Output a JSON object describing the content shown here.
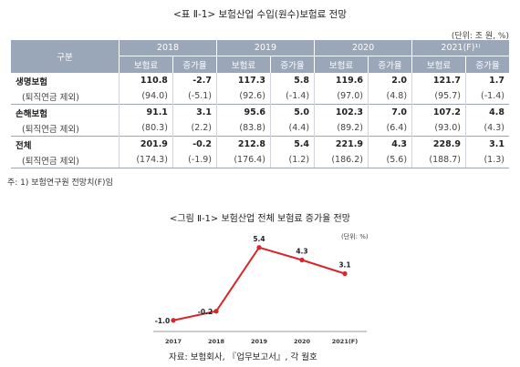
{
  "table": {
    "title": "<표 Ⅱ-1> 보험산업 수입(원수)보험료 전망",
    "unit": "(단위: 조 원, %)",
    "gubun_label": "구분",
    "years": [
      "2018",
      "2019",
      "2020",
      "2021(F)¹⁾"
    ],
    "sub_headers": [
      "보험료",
      "증가율",
      "보험료",
      "증가율",
      "보험료",
      "증가율",
      "보험료",
      "증가율"
    ],
    "rows": [
      {
        "label": "생명보험",
        "kind": "main",
        "cells": [
          "110.8",
          "-2.7",
          "117.3",
          "5.8",
          "119.6",
          "2.0",
          "121.7",
          "1.7"
        ]
      },
      {
        "label": "(퇴직연금 제외)",
        "kind": "excl",
        "cells": [
          "(94.0)",
          "(-5.1)",
          "(92.6)",
          "(-1.4)",
          "(97.0)",
          "(4.8)",
          "(95.7)",
          "(-1.4)"
        ]
      },
      {
        "label": "손해보험",
        "kind": "main",
        "cells": [
          "91.1",
          "3.1",
          "95.6",
          "5.0",
          "102.3",
          "7.0",
          "107.2",
          "4.8"
        ]
      },
      {
        "label": "(퇴직연금 제외)",
        "kind": "excl",
        "cells": [
          "(80.3)",
          "(2.2)",
          "(83.8)",
          "(4.4)",
          "(89.2)",
          "(6.4)",
          "(93.0)",
          "(4.3)"
        ]
      },
      {
        "label": "전체",
        "kind": "main",
        "cells": [
          "201.9",
          "-0.2",
          "212.8",
          "5.4",
          "221.9",
          "4.3",
          "228.9",
          "3.1"
        ]
      },
      {
        "label": "(퇴직연금 제외)",
        "kind": "excl",
        "cells": [
          "(174.3)",
          "(-1.9)",
          "(176.4)",
          "(1.2)",
          "(186.2)",
          "(5.6)",
          "(188.7)",
          "(1.3)"
        ]
      }
    ],
    "footnote": "주: 1) 보험연구원 전망치(F)임"
  },
  "chart_data": {
    "type": "line",
    "title": "<그림 Ⅱ-1> 보험산업 전체 보험료 증가율 전망",
    "unit": "(단위: %)",
    "categories": [
      "2017",
      "2018",
      "2019",
      "2020",
      "2021(F)"
    ],
    "series": [
      {
        "values": [
          -1.0,
          -0.2,
          5.4,
          4.3,
          3.1
        ],
        "color": "#d8262c"
      }
    ],
    "data_labels": [
      "-1.0",
      "-0.2",
      "5.4",
      "4.3",
      "3.1"
    ],
    "ylim": [
      -1.5,
      6.5
    ],
    "grid": false,
    "source": "자료: 보험회사, 『업무보고서』, 각 월호"
  }
}
